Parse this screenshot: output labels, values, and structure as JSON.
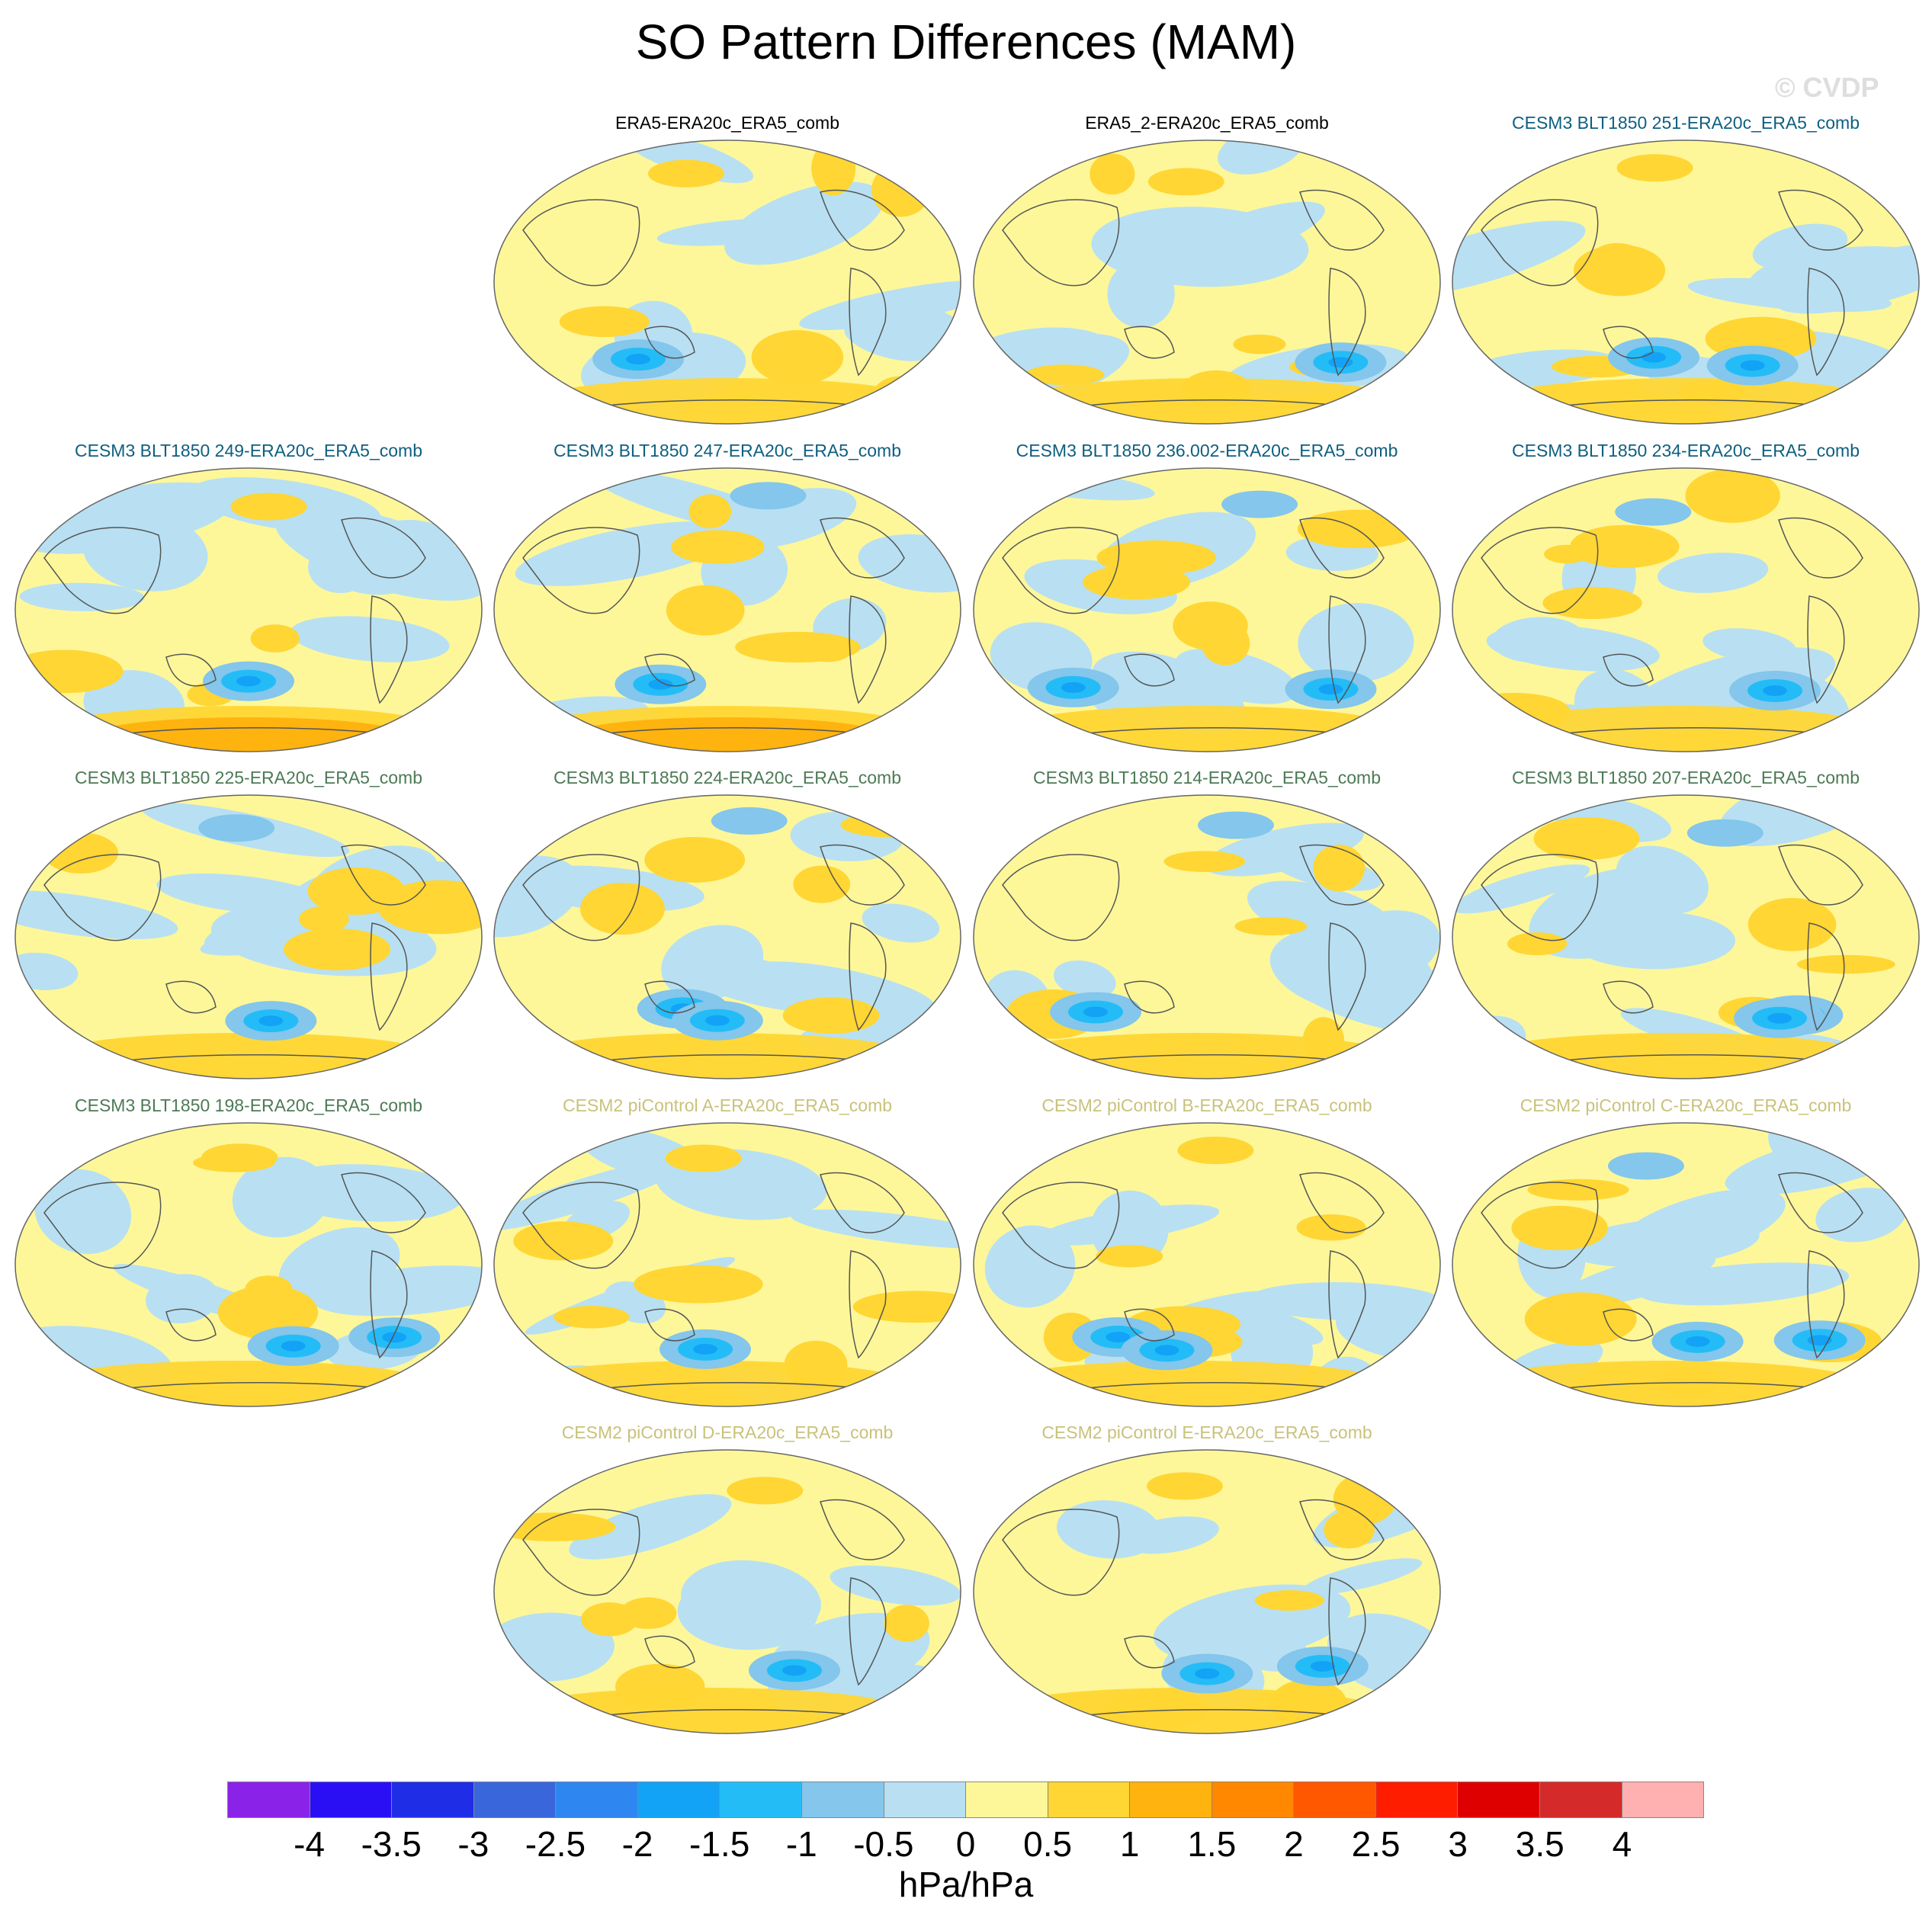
{
  "figure_title": "SO Pattern Differences (MAM)",
  "credit": "© CVDP",
  "chart_data": {
    "type": "map-panels",
    "title": "SO Pattern Differences (MAM)",
    "units": "hPa/hPa",
    "projection": "Robinson-like, Pacific-centered",
    "panels": [
      {
        "title": "ERA5-ERA20c_ERA5_comb",
        "group": "obs"
      },
      {
        "title": "ERA5_2-ERA20c_ERA5_comb",
        "group": "obs"
      },
      {
        "title": "CESM3 BLT1850 251-ERA20c_ERA5_comb",
        "group": "cesm3a"
      },
      {
        "title": "CESM3 BLT1850 249-ERA20c_ERA5_comb",
        "group": "cesm3a"
      },
      {
        "title": "CESM3 BLT1850 247-ERA20c_ERA5_comb",
        "group": "cesm3a"
      },
      {
        "title": "CESM3 BLT1850 236.002-ERA20c_ERA5_comb",
        "group": "cesm3a"
      },
      {
        "title": "CESM3 BLT1850 234-ERA20c_ERA5_comb",
        "group": "cesm3a"
      },
      {
        "title": "CESM3 BLT1850 225-ERA20c_ERA5_comb",
        "group": "cesm3b"
      },
      {
        "title": "CESM3 BLT1850 224-ERA20c_ERA5_comb",
        "group": "cesm3b"
      },
      {
        "title": "CESM3 BLT1850 214-ERA20c_ERA5_comb",
        "group": "cesm3b"
      },
      {
        "title": "CESM3 BLT1850 207-ERA20c_ERA5_comb",
        "group": "cesm3b"
      },
      {
        "title": "CESM3 BLT1850 198-ERA20c_ERA5_comb",
        "group": "cesm3b"
      },
      {
        "title": "CESM2 piControl A-ERA20c_ERA5_comb",
        "group": "cesm2"
      },
      {
        "title": "CESM2 piControl B-ERA20c_ERA5_comb",
        "group": "cesm2"
      },
      {
        "title": "CESM2 piControl C-ERA20c_ERA5_comb",
        "group": "cesm2"
      },
      {
        "title": "CESM2 piControl D-ERA20c_ERA5_comb",
        "group": "cesm2"
      },
      {
        "title": "CESM2 piControl E-ERA20c_ERA5_comb",
        "group": "cesm2"
      }
    ],
    "group_colors": {
      "obs": "#000000",
      "cesm3a": "#0e5f80",
      "cesm3b": "#4d7a56",
      "cesm2": "#c9c27a"
    },
    "colorbar": {
      "levels": [
        "-4",
        "-3.5",
        "-3",
        "-2.5",
        "-2",
        "-1.5",
        "-1",
        "-0.5",
        "0",
        "0.5",
        "1",
        "1.5",
        "2",
        "2.5",
        "3",
        "3.5",
        "4"
      ],
      "colors": [
        "#8a22e8",
        "#2a0ff5",
        "#1f2ee6",
        "#3a66dc",
        "#2e86f0",
        "#12a3f7",
        "#24bcf7",
        "#84c6ec",
        "#b8e0f2",
        "#fdf79a",
        "#ffd633",
        "#ffb30f",
        "#ff8800",
        "#ff5800",
        "#ff1d00",
        "#de0000",
        "#d42a2a",
        "#ffb0b0"
      ]
    }
  }
}
